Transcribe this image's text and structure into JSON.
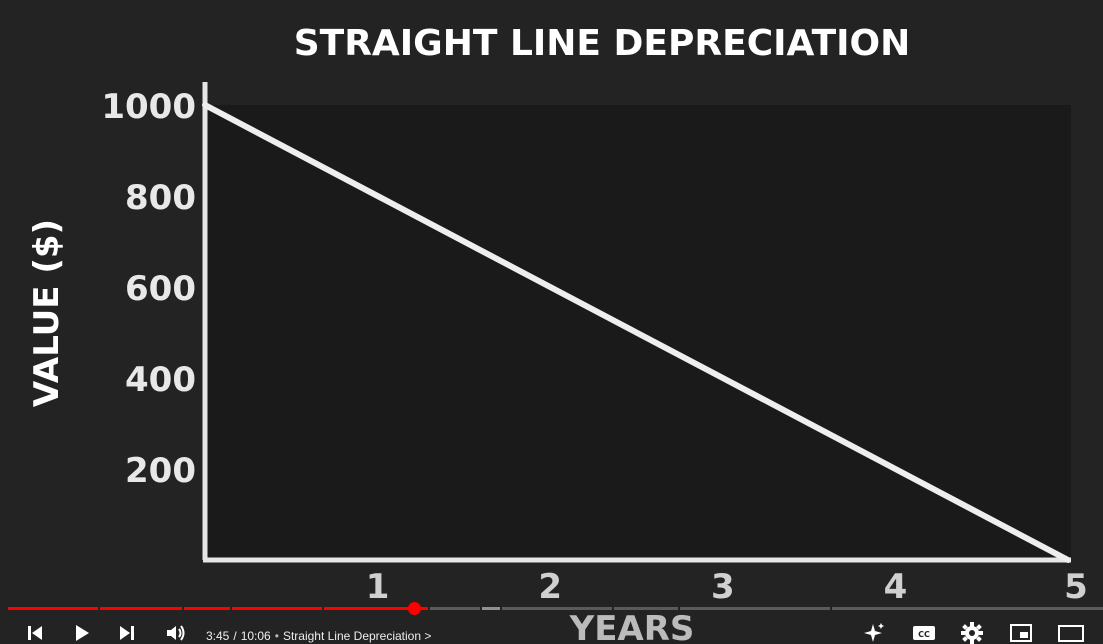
{
  "player": {
    "time_current": "3:45",
    "time_separator": "/",
    "time_total": "10:06",
    "chapter_separator": "•",
    "chapter_title": "Straight Line Depreciation",
    "chapter_chevron": ">",
    "progress_fraction": 0.371,
    "buffered_fraction": 0.41,
    "accent_color": "#ff0000",
    "icons": {
      "previous": "skip-previous-icon",
      "play": "play-icon",
      "next": "skip-next-icon",
      "volume": "volume-icon",
      "autoplay": "sparkle-icon",
      "captions": "captions-icon",
      "settings": "gear-icon",
      "miniplayer": "miniplayer-icon",
      "theater": "theater-mode-icon"
    },
    "captions_label": "CC"
  },
  "chart_data": {
    "type": "line",
    "title": "STRAIGHT LINE DEPRECIATION",
    "xlabel": "YEARS",
    "ylabel": "VALUE ($)",
    "x_ticks": [
      "1",
      "2",
      "3",
      "4",
      "5"
    ],
    "y_ticks": [
      "1000",
      "800",
      "600",
      "400",
      "200"
    ],
    "xlim": [
      0,
      5
    ],
    "ylim": [
      0,
      1000
    ],
    "series": [
      {
        "x": [
          0,
          5
        ],
        "y": [
          1000,
          0
        ],
        "color": "#eeeeee"
      }
    ],
    "grid": false
  }
}
